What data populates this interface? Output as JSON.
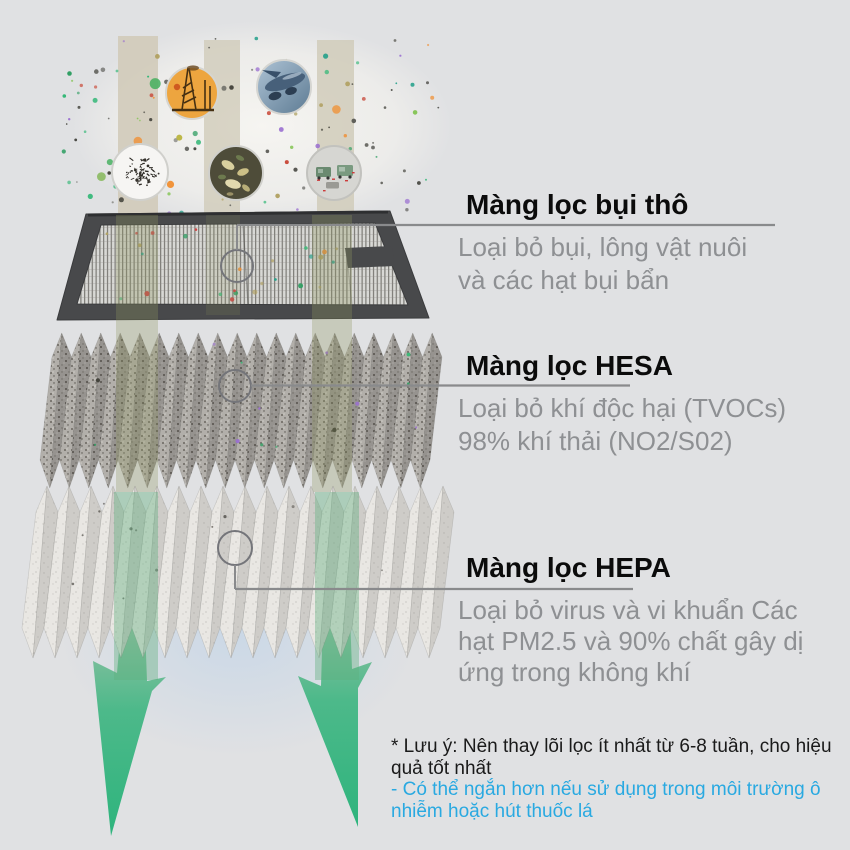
{
  "page": {
    "background": "#e0e1e3"
  },
  "pollution": {
    "sources": [
      {
        "icon": "factory-smokestack-icon"
      },
      {
        "icon": "airplane-engine-icon"
      },
      {
        "icon": "dust-hair-icon"
      },
      {
        "icon": "mold-bacteria-icon"
      },
      {
        "icon": "vehicle-traffic-icon"
      }
    ]
  },
  "filters": [
    {
      "id": "coarse",
      "title": "Màng lọc bụi thô",
      "desc_lines": [
        "Loại bỏ bụi, lông vật nuôi",
        "và các hạt bụi bẩn"
      ]
    },
    {
      "id": "hesa",
      "title": "Màng lọc HESA",
      "desc_lines": [
        "Loại bỏ khí độc hại (TVOCs)",
        "98% khí thải (NO2/S02)"
      ]
    },
    {
      "id": "hepa",
      "title": "Màng lọc HEPA",
      "desc_lines": [
        "Loại bỏ virus và vi khuẩn Các",
        "hạt PM2.5 và 90% chất gây dị",
        "ứng trong không khí"
      ]
    }
  ],
  "note": {
    "lines_black": [
      "* Lưu ý: Nên thay lõi lọc ít nhất từ 6-8 tuần, cho hiệu",
      "quả tốt nhất"
    ],
    "lines_blue": [
      "- Có thể ngắn hơn nếu sử dụng trong môi trường ô",
      "nhiễm hoặc hút thuốc lá"
    ]
  },
  "colors": {
    "note_blue": "#29a9e1",
    "arrow_green": "#2fb57e",
    "body_gray": "#8e9093",
    "connector_gray": "#898a8c"
  }
}
